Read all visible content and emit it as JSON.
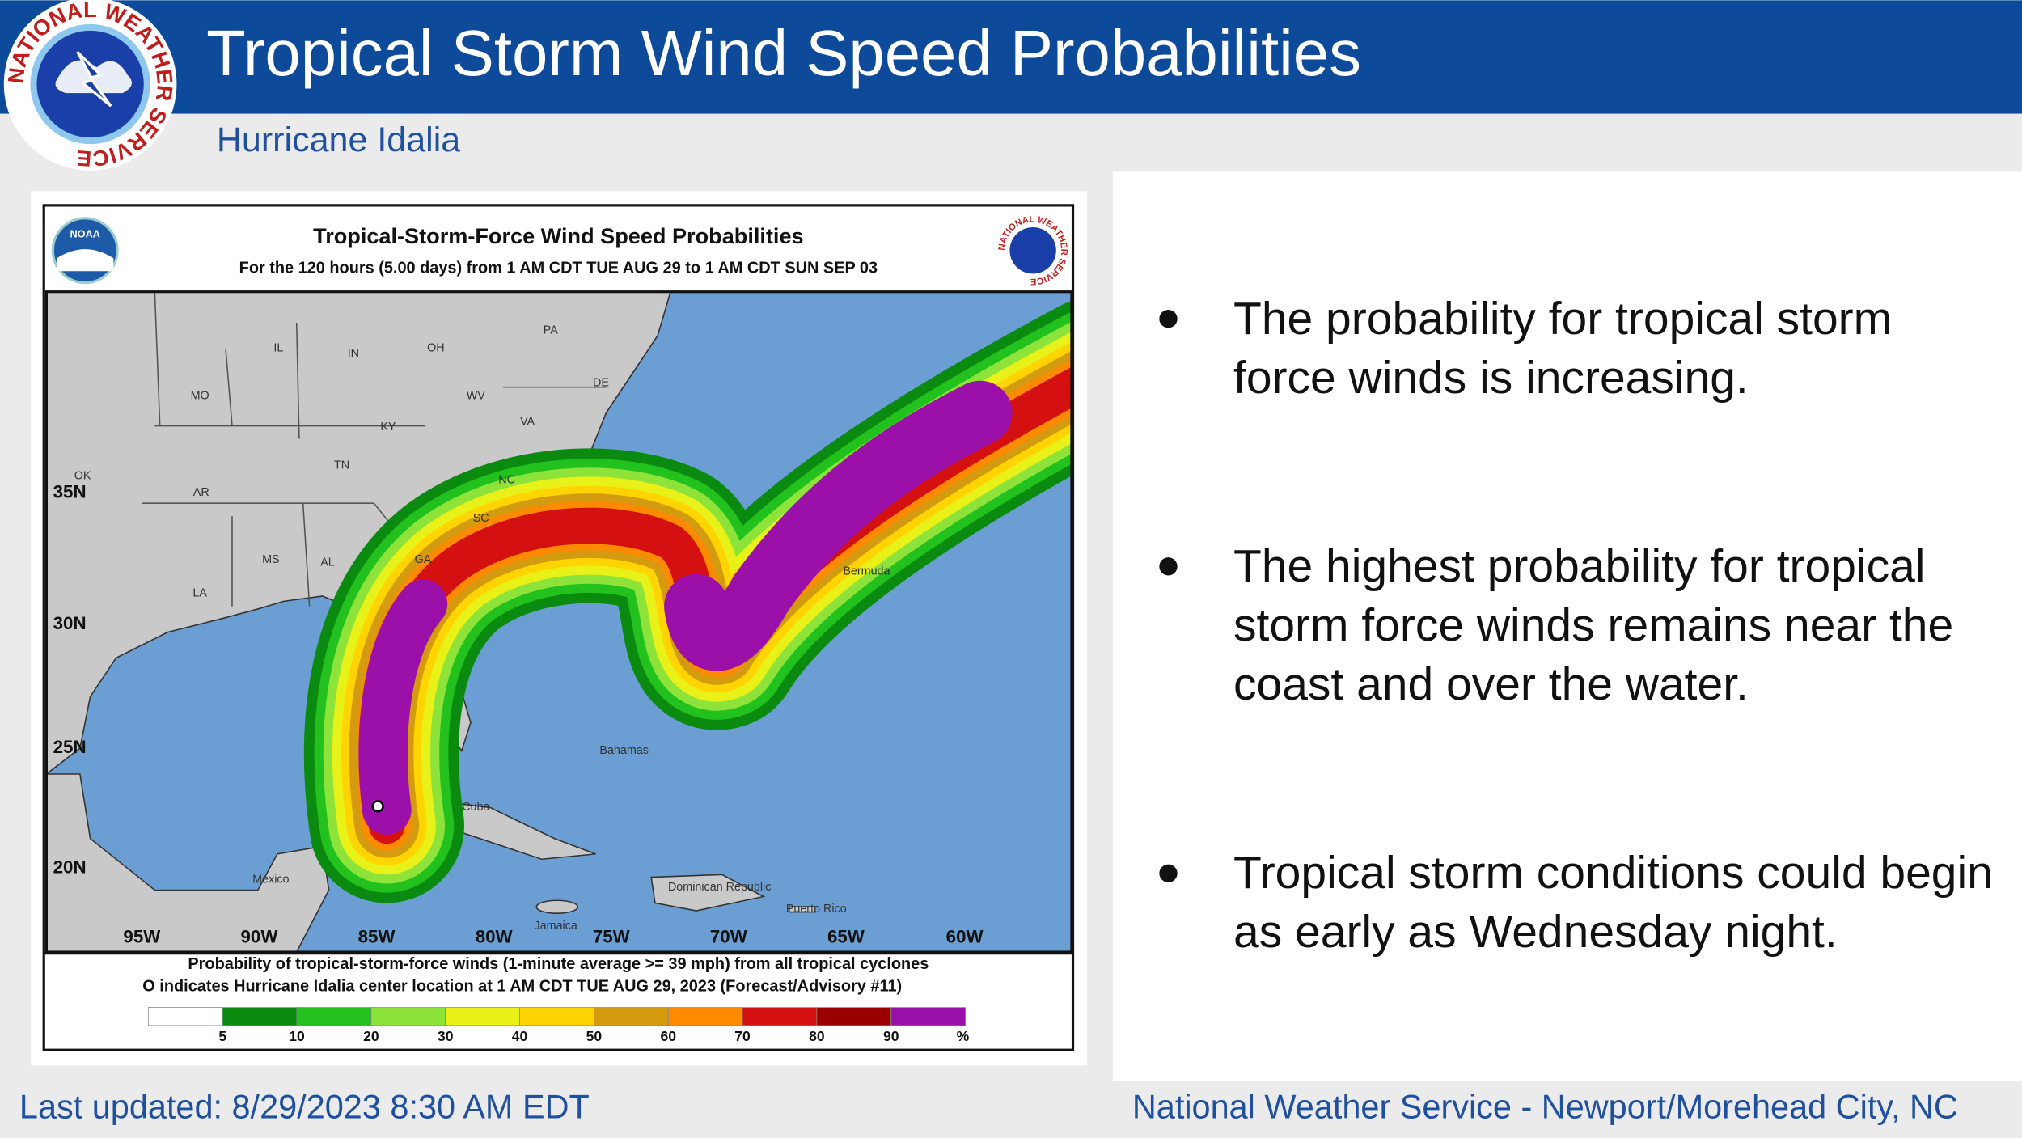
{
  "header": {
    "title": "Tropical Storm Wind Speed Probabilities",
    "subtitle": "Hurricane Idalia",
    "logo_text": "NATIONAL WEATHER SERVICE"
  },
  "map": {
    "title": "Tropical-Storm-Force Wind Speed Probabilities",
    "subtitle": "For the 120 hours (5.00 days) from 1 AM CDT TUE AUG 29 to 1 AM CDT SUN SEP 03",
    "noaa": "NOAA",
    "footer": [
      "Probability of tropical-storm-force winds (1-minute average >= 39 mph) from all tropical cyclones",
      "O indicates Hurricane Idalia center location at 1 AM CDT TUE AUG 29, 2023 (Forecast/Advisory #11)"
    ],
    "longitudes": [
      "95W",
      "90W",
      "85W",
      "80W",
      "75W",
      "70W",
      "65W",
      "60W"
    ],
    "latitudes": [
      "35N",
      "30N",
      "25N",
      "20N"
    ],
    "places": [
      "IL",
      "IN",
      "OH",
      "PA",
      "MO",
      "KY",
      "WV",
      "VA",
      "TN",
      "NC",
      "AR",
      "OK",
      "MS",
      "AL",
      "GA",
      "SC",
      "LA",
      "DE",
      "Bermuda",
      "Bahamas",
      "Cuba",
      "Mexico",
      "Jamaica",
      "Dominican Republic",
      "Puerto Rico"
    ],
    "legend": {
      "labels": [
        5,
        10,
        20,
        30,
        40,
        50,
        60,
        70,
        80,
        90,
        "%"
      ],
      "colors": [
        "#ffffff",
        "#0b8a10",
        "#22c11e",
        "#8de33a",
        "#e8f218",
        "#ffd400",
        "#d49a10",
        "#ff8a00",
        "#d41010",
        "#9a0000",
        "#9a10a8"
      ]
    }
  },
  "bullets": [
    "The probability for tropical storm force winds is increasing.",
    "The highest probability for tropical storm force winds remains near the coast and over the water.",
    "Tropical storm conditions could begin as early as Wednesday night."
  ],
  "footer": {
    "left": "Last updated: 8/29/2023 8:30 AM EDT",
    "right": "National Weather Service - Newport/Morehead City, NC"
  }
}
